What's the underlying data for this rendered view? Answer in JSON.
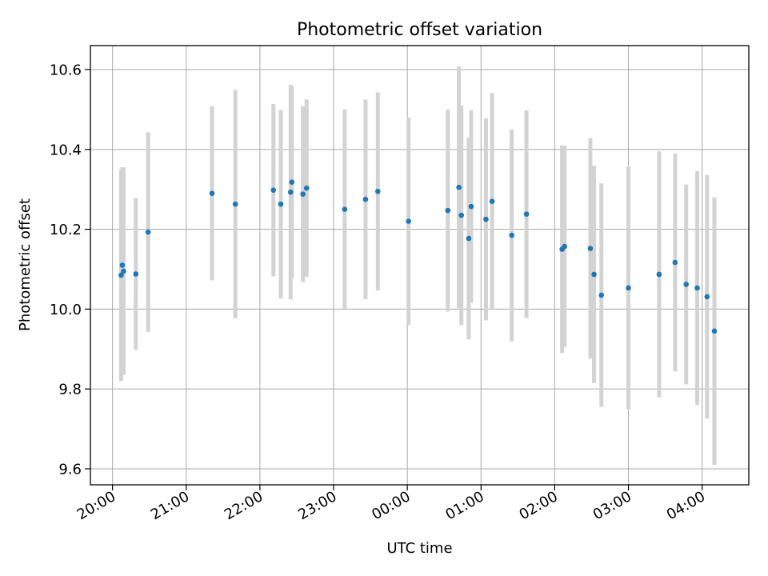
{
  "chart_data": {
    "type": "scatter",
    "title": "Photometric offset variation",
    "xlabel": "UTC time",
    "ylabel": "Photometric offset",
    "x_axis_kind": "time",
    "xlim": [
      "19:42",
      "04:38"
    ],
    "ylim": [
      9.56,
      10.66
    ],
    "xticks": [
      "20:00",
      "21:00",
      "22:00",
      "23:00",
      "00:00",
      "01:00",
      "02:00",
      "03:00",
      "04:00"
    ],
    "yticks": [
      9.6,
      9.8,
      10.0,
      10.2,
      10.4,
      10.6
    ],
    "ytick_labels": [
      "9.6",
      "9.8",
      "10.0",
      "10.2",
      "10.4",
      "10.6"
    ],
    "grid": true,
    "series": [
      {
        "marker_color": "#1f77b4",
        "errorbar_color": "#d3d3d3",
        "points": [
          {
            "time": "20:07",
            "y": 10.085,
            "yerr": 0.265
          },
          {
            "time": "20:08",
            "y": 10.11,
            "yerr": 0.245
          },
          {
            "time": "20:09",
            "y": 10.095,
            "yerr": 0.26
          },
          {
            "time": "20:19",
            "y": 10.088,
            "yerr": 0.19
          },
          {
            "time": "20:29",
            "y": 10.193,
            "yerr": 0.25
          },
          {
            "time": "21:21",
            "y": 10.29,
            "yerr": 0.218
          },
          {
            "time": "21:40",
            "y": 10.263,
            "yerr": 0.286
          },
          {
            "time": "22:11",
            "y": 10.298,
            "yerr": 0.216
          },
          {
            "time": "22:17",
            "y": 10.263,
            "yerr": 0.236
          },
          {
            "time": "22:25",
            "y": 10.293,
            "yerr": 0.269
          },
          {
            "time": "22:26",
            "y": 10.318,
            "yerr": 0.24
          },
          {
            "time": "22:35",
            "y": 10.288,
            "yerr": 0.22
          },
          {
            "time": "22:38",
            "y": 10.303,
            "yerr": 0.222
          },
          {
            "time": "23:09",
            "y": 10.25,
            "yerr": 0.25
          },
          {
            "time": "23:26",
            "y": 10.275,
            "yerr": 0.25
          },
          {
            "time": "23:36",
            "y": 10.295,
            "yerr": 0.248
          },
          {
            "time": "00:01",
            "y": 10.22,
            "yerr": 0.26
          },
          {
            "time": "00:33",
            "y": 10.247,
            "yerr": 0.253
          },
          {
            "time": "00:42",
            "y": 10.305,
            "yerr": 0.303
          },
          {
            "time": "00:44",
            "y": 10.235,
            "yerr": 0.275
          },
          {
            "time": "00:50",
            "y": 10.177,
            "yerr": 0.253
          },
          {
            "time": "00:52",
            "y": 10.257,
            "yerr": 0.241
          },
          {
            "time": "01:04",
            "y": 10.225,
            "yerr": 0.253
          },
          {
            "time": "01:09",
            "y": 10.27,
            "yerr": 0.271
          },
          {
            "time": "01:25",
            "y": 10.185,
            "yerr": 0.265
          },
          {
            "time": "01:37",
            "y": 10.238,
            "yerr": 0.26
          },
          {
            "time": "02:06",
            "y": 10.15,
            "yerr": 0.26
          },
          {
            "time": "02:08",
            "y": 10.157,
            "yerr": 0.252
          },
          {
            "time": "02:29",
            "y": 10.152,
            "yerr": 0.276
          },
          {
            "time": "02:32",
            "y": 10.087,
            "yerr": 0.272
          },
          {
            "time": "02:38",
            "y": 10.035,
            "yerr": 0.28
          },
          {
            "time": "03:00",
            "y": 10.053,
            "yerr": 0.303
          },
          {
            "time": "03:25",
            "y": 10.087,
            "yerr": 0.308
          },
          {
            "time": "03:38",
            "y": 10.117,
            "yerr": 0.273
          },
          {
            "time": "03:47",
            "y": 10.062,
            "yerr": 0.25
          },
          {
            "time": "03:56",
            "y": 10.053,
            "yerr": 0.293
          },
          {
            "time": "04:04",
            "y": 10.031,
            "yerr": 0.305
          },
          {
            "time": "04:10",
            "y": 9.945,
            "yerr": 0.335
          }
        ]
      }
    ]
  }
}
